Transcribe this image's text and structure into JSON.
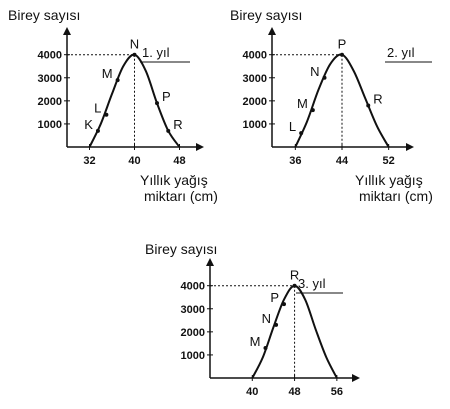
{
  "chart_data": [
    {
      "type": "line",
      "panel_label": "1. yıl",
      "ylabel": "Birey sayısı",
      "xlabel": [
        "Yıllık yağış",
        "miktarı (cm)"
      ],
      "xlim": [
        28,
        52
      ],
      "ylim": [
        0,
        5200
      ],
      "x_ticks": [
        "32",
        "40",
        "48"
      ],
      "x_tick_values": [
        32,
        40,
        48
      ],
      "y_ticks": [
        "4000",
        "3000",
        "2000",
        "1000"
      ],
      "y_tick_values": [
        4000,
        3000,
        2000,
        1000
      ],
      "peak": {
        "x": 40,
        "y": 4000
      },
      "points": [
        {
          "label": "K",
          "x": 33.5,
          "y": 700
        },
        {
          "label": "L",
          "x": 35,
          "y": 1400
        },
        {
          "label": "M",
          "x": 37,
          "y": 2900
        },
        {
          "label": "N",
          "x": 40,
          "y": 4000
        },
        {
          "label": "P",
          "x": 44,
          "y": 1900
        },
        {
          "label": "R",
          "x": 46,
          "y": 700
        }
      ],
      "curve": [
        [
          32,
          0
        ],
        [
          34,
          1000
        ],
        [
          36,
          2300
        ],
        [
          38,
          3500
        ],
        [
          40,
          4000
        ],
        [
          42,
          3300
        ],
        [
          44,
          1900
        ],
        [
          46,
          700
        ],
        [
          48,
          0
        ]
      ]
    },
    {
      "type": "line",
      "panel_label": "2. yıl",
      "ylabel": "Birey sayısı",
      "xlabel": [
        "Yıllık yağış",
        "miktarı (cm)"
      ],
      "xlim": [
        32,
        56
      ],
      "ylim": [
        0,
        5200
      ],
      "x_ticks": [
        "36",
        "44",
        "52"
      ],
      "x_tick_values": [
        36,
        44,
        52
      ],
      "y_ticks": [
        "4000",
        "3000",
        "2000",
        "1000"
      ],
      "y_tick_values": [
        4000,
        3000,
        2000,
        1000
      ],
      "peak": {
        "x": 44,
        "y": 4000
      },
      "points": [
        {
          "label": "L",
          "x": 37,
          "y": 600
        },
        {
          "label": "M",
          "x": 39,
          "y": 1600
        },
        {
          "label": "N",
          "x": 41,
          "y": 3000
        },
        {
          "label": "P",
          "x": 44,
          "y": 4000
        },
        {
          "label": "R",
          "x": 48.5,
          "y": 1800
        }
      ],
      "curve": [
        [
          36,
          0
        ],
        [
          38,
          1100
        ],
        [
          40,
          2500
        ],
        [
          42,
          3600
        ],
        [
          44,
          4000
        ],
        [
          46,
          3300
        ],
        [
          48,
          2100
        ],
        [
          50,
          900
        ],
        [
          52,
          0
        ]
      ]
    },
    {
      "type": "line",
      "panel_label": "3. yıl",
      "ylabel": "Birey sayısı",
      "xlabel": [],
      "xlim": [
        32,
        60
      ],
      "ylim": [
        0,
        5200
      ],
      "x_ticks": [
        "40",
        "48",
        "56"
      ],
      "x_tick_values": [
        40,
        48,
        56
      ],
      "y_ticks": [
        "4000",
        "3000",
        "2000",
        "1000"
      ],
      "y_tick_values": [
        4000,
        3000,
        2000,
        1000
      ],
      "peak": {
        "x": 48,
        "y": 4000
      },
      "points": [
        {
          "label": "M",
          "x": 42.5,
          "y": 1300
        },
        {
          "label": "N",
          "x": 44.5,
          "y": 2300
        },
        {
          "label": "P",
          "x": 46,
          "y": 3200
        },
        {
          "label": "R",
          "x": 48,
          "y": 4000
        }
      ],
      "curve": [
        [
          40,
          0
        ],
        [
          42,
          900
        ],
        [
          44,
          2200
        ],
        [
          46,
          3400
        ],
        [
          48,
          4000
        ],
        [
          50,
          3400
        ],
        [
          52,
          2100
        ],
        [
          54,
          900
        ],
        [
          56,
          0
        ]
      ]
    }
  ]
}
